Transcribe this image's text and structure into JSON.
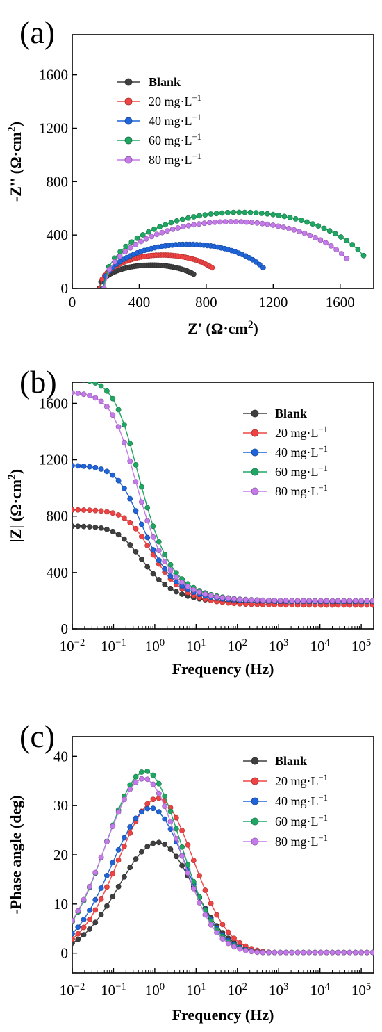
{
  "chart_data": [
    {
      "panel": "(a)",
      "type": "scatter",
      "xlabel": "Z' (Ω·cm²)",
      "ylabel": "-Z'' (Ω·cm²)",
      "xlim": [
        0,
        1800
      ],
      "ylim": [
        0,
        1900
      ],
      "xticks": [
        0,
        400,
        800,
        1200,
        1600
      ],
      "yticks": [
        0,
        400,
        800,
        1200,
        1600
      ],
      "xscale": "linear",
      "legend_position": "top-left",
      "series": [
        {
          "name": "Blank",
          "color": "#3f3f3f",
          "semicircle": {
            "z_start": 160,
            "z_end": 790,
            "peak": 175,
            "z_last": 725
          }
        },
        {
          "name": "20 mg·L⁻¹",
          "color": "#ef4343",
          "semicircle": {
            "z_start": 165,
            "z_end": 915,
            "peak": 250,
            "z_last": 835
          }
        },
        {
          "name": "40 mg·L⁻¹",
          "color": "#1f64d8",
          "semicircle": {
            "z_start": 180,
            "z_end": 1200,
            "peak": 330,
            "z_last": 1140
          }
        },
        {
          "name": "60 mg·L⁻¹",
          "color": "#1fa662",
          "semicircle": {
            "z_start": 185,
            "z_end": 1820,
            "peak": 570,
            "z_last": 1740
          }
        },
        {
          "name": "80 mg·L⁻¹",
          "color": "#c47ae8",
          "semicircle": {
            "z_start": 190,
            "z_end": 1720,
            "peak": 500,
            "z_last": 1640
          }
        }
      ]
    },
    {
      "panel": "(b)",
      "type": "line",
      "xlabel": "Frequency (Hz)",
      "ylabel": "|Z| (Ω·cm²)",
      "xscale": "log",
      "xlim": [
        0.01,
        200000
      ],
      "ylim": [
        0,
        1750
      ],
      "xtick_exponents": [
        -2,
        -1,
        0,
        1,
        2,
        3,
        4,
        5
      ],
      "yticks": [
        0,
        400,
        800,
        1200,
        1600
      ],
      "legend_position": "top-right",
      "series": [
        {
          "name": "Blank",
          "color": "#3f3f3f",
          "r_high": 185,
          "r_low": 730,
          "f_corner": 0.3
        },
        {
          "name": "20 mg·L⁻¹",
          "color": "#ef4343",
          "r_high": 170,
          "r_low": 845,
          "f_corner": 0.5
        },
        {
          "name": "40 mg·L⁻¹",
          "color": "#1f64d8",
          "r_high": 195,
          "r_low": 1160,
          "f_corner": 0.3
        },
        {
          "name": "60 mg·L⁻¹",
          "color": "#1fa662",
          "r_high": 200,
          "r_low": 1780,
          "f_corner": 0.25
        },
        {
          "name": "80 mg·L⁻¹",
          "color": "#c47ae8",
          "r_high": 200,
          "r_low": 1680,
          "f_corner": 0.22
        }
      ]
    },
    {
      "panel": "(c)",
      "type": "line",
      "xlabel": "Frequency (Hz)",
      "ylabel": "-Phase angle (deg)",
      "xscale": "log",
      "xlim": [
        0.01,
        200000
      ],
      "ylim": [
        -4,
        44
      ],
      "xtick_exponents": [
        -2,
        -1,
        0,
        1,
        2,
        3,
        4,
        5
      ],
      "yticks": [
        0,
        10,
        20,
        30,
        40
      ],
      "legend_position": "right",
      "series": [
        {
          "name": "Blank",
          "color": "#3f3f3f",
          "peak_deg": 22.5,
          "peak_freq": 1.2,
          "start_deg": 2.0
        },
        {
          "name": "20 mg·L⁻¹",
          "color": "#ef4343",
          "peak_deg": 31.5,
          "peak_freq": 1.2,
          "start_deg": 2.0
        },
        {
          "name": "40 mg·L⁻¹",
          "color": "#1f64d8",
          "peak_deg": 29.5,
          "peak_freq": 0.8,
          "start_deg": 5.5
        },
        {
          "name": "60 mg·L⁻¹",
          "color": "#1fa662",
          "peak_deg": 37.0,
          "peak_freq": 0.6,
          "start_deg": 5.0
        },
        {
          "name": "80 mg·L⁻¹",
          "color": "#c47ae8",
          "peak_deg": 35.5,
          "peak_freq": 0.55,
          "start_deg": 6.0
        }
      ]
    }
  ]
}
